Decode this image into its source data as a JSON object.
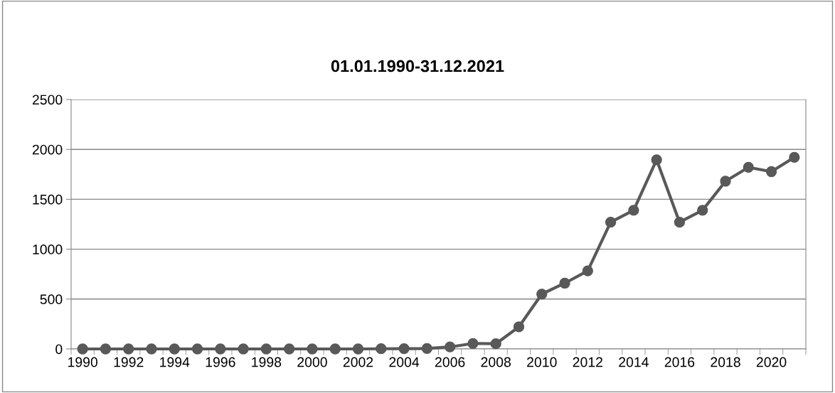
{
  "chart_data": {
    "type": "line",
    "title": "01.01.1990-31.12.2021",
    "categories": [
      "1990",
      null,
      "1992",
      null,
      "1994",
      null,
      "1996",
      null,
      "1998",
      null,
      "2000",
      null,
      "2002",
      null,
      "2004",
      null,
      "2006",
      null,
      "2008",
      null,
      "2010",
      null,
      "2012",
      null,
      "2014",
      null,
      "2016",
      null,
      "2018",
      null,
      "2020",
      null
    ],
    "series": [
      {
        "color": "#595959",
        "values": [
          0,
          0,
          0,
          0,
          0,
          0,
          0,
          0,
          0,
          0,
          0,
          0,
          0,
          2,
          3,
          5,
          20,
          55,
          52,
          221,
          550,
          659,
          782,
          1270,
          1390,
          1896,
          1270,
          1390,
          1681,
          1820,
          1777,
          1921
        ]
      }
    ],
    "ylim": [
      0,
      2500
    ],
    "yticks": [
      0,
      500,
      1000,
      1500,
      2000,
      2500
    ],
    "grid": "y",
    "marker": "circle",
    "line_style": "solid",
    "legend": false
  }
}
